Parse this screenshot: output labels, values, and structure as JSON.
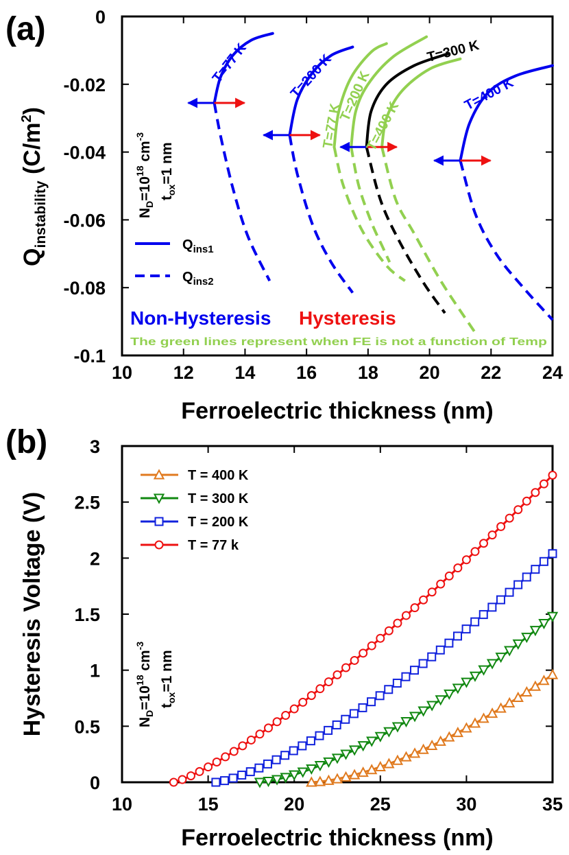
{
  "chart_data": [
    {
      "panel": "(a)",
      "type": "line",
      "xlabel": "Ferroelectric thickness (nm)",
      "ylabel": {
        "main": "Q",
        "sub": "instability",
        "unit": " (C/m",
        "unit_sup": "2",
        "unit_end": ")"
      },
      "xlim": [
        10,
        24
      ],
      "ylim": [
        -0.1,
        0
      ],
      "xticks": [
        10,
        12,
        14,
        16,
        18,
        20,
        22,
        24
      ],
      "yticks": [
        0,
        -0.02,
        -0.04,
        -0.06,
        -0.08,
        -0.1
      ],
      "ytick_labels": [
        "0",
        "-0.02",
        "-0.04",
        "-0.06",
        "-0.08",
        "-0.1"
      ],
      "series": [
        {
          "name": "T=77 K",
          "color": "#0000ee",
          "solid": [
            [
              13.0,
              -0.0255
            ],
            [
              13.2,
              -0.018
            ],
            [
              13.6,
              -0.0115
            ],
            [
              14.2,
              -0.007
            ],
            [
              14.9,
              -0.005
            ]
          ],
          "dashed": [
            [
              13.0,
              -0.0255
            ],
            [
              13.2,
              -0.035
            ],
            [
              13.6,
              -0.0505
            ],
            [
              14.1,
              -0.065
            ],
            [
              14.8,
              -0.078
            ]
          ]
        },
        {
          "name": "T=200 K",
          "color": "#0000ee",
          "solid": [
            [
              15.45,
              -0.035
            ],
            [
              15.7,
              -0.0245
            ],
            [
              16.2,
              -0.0165
            ],
            [
              16.8,
              -0.0115
            ],
            [
              17.5,
              -0.009
            ]
          ],
          "dashed": [
            [
              15.45,
              -0.035
            ],
            [
              15.7,
              -0.0465
            ],
            [
              16.2,
              -0.0615
            ],
            [
              16.8,
              -0.0725
            ],
            [
              17.5,
              -0.0815
            ]
          ]
        },
        {
          "name": "T=77 K",
          "color": "#92d050",
          "fe_temp_independent": true,
          "solid": [
            [
              16.9,
              -0.0385
            ],
            [
              17.05,
              -0.028
            ],
            [
              17.45,
              -0.018
            ],
            [
              18.1,
              -0.0105
            ],
            [
              18.6,
              -0.008
            ]
          ],
          "dashed": [
            [
              16.9,
              -0.0385
            ],
            [
              17.2,
              -0.05
            ],
            [
              17.8,
              -0.063
            ],
            [
              18.6,
              -0.0735
            ],
            [
              19.2,
              -0.078
            ]
          ]
        },
        {
          "name": "T=200 K",
          "color": "#92d050",
          "fe_temp_independent": true,
          "solid": [
            [
              17.45,
              -0.0385
            ],
            [
              17.6,
              -0.028
            ],
            [
              18.0,
              -0.02
            ],
            [
              18.8,
              -0.012
            ],
            [
              19.9,
              -0.006
            ]
          ],
          "dashed": [
            [
              17.45,
              -0.0385
            ],
            [
              17.7,
              -0.05
            ],
            [
              18.1,
              -0.0605
            ],
            [
              18.5,
              -0.0685
            ],
            [
              18.7,
              -0.0725
            ]
          ]
        },
        {
          "name": "T=300 K",
          "color": "#000000",
          "solid": [
            [
              17.95,
              -0.0385
            ],
            [
              18.1,
              -0.028
            ],
            [
              18.6,
              -0.02
            ],
            [
              19.5,
              -0.0145
            ],
            [
              20.6,
              -0.011
            ]
          ],
          "dashed": [
            [
              17.95,
              -0.0385
            ],
            [
              18.4,
              -0.054
            ],
            [
              19.0,
              -0.066
            ],
            [
              19.8,
              -0.0785
            ],
            [
              20.5,
              -0.0875
            ]
          ]
        },
        {
          "name": "T=400 K",
          "color": "#92d050",
          "fe_temp_independent": true,
          "solid": [
            [
              18.45,
              -0.0385
            ],
            [
              18.6,
              -0.03
            ],
            [
              19.1,
              -0.022
            ],
            [
              20.0,
              -0.0155
            ],
            [
              21.0,
              -0.0125
            ]
          ],
          "dashed": [
            [
              18.45,
              -0.0385
            ],
            [
              18.9,
              -0.054
            ],
            [
              19.5,
              -0.064
            ],
            [
              20.4,
              -0.0785
            ],
            [
              21.5,
              -0.0935
            ]
          ]
        },
        {
          "name": "T=400 K",
          "color": "#0000ee",
          "solid": [
            [
              21.0,
              -0.0425
            ],
            [
              21.3,
              -0.0315
            ],
            [
              21.9,
              -0.0225
            ],
            [
              22.8,
              -0.0175
            ],
            [
              24.0,
              -0.0145
            ]
          ],
          "dashed": [
            [
              21.0,
              -0.0425
            ],
            [
              21.5,
              -0.0585
            ],
            [
              22.2,
              -0.0705
            ],
            [
              23.1,
              -0.0805
            ],
            [
              24.0,
              -0.0895
            ]
          ]
        }
      ],
      "curve_labels": [
        {
          "text": "T=77 K",
          "color": "#0000ee",
          "x": 13.6,
          "y": -0.0145,
          "angle": -52
        },
        {
          "text": "T=200 K",
          "color": "#0000ee",
          "x": 16.25,
          "y": -0.0185,
          "angle": -48
        },
        {
          "text": "T=77 K",
          "color": "#92d050",
          "x": 16.95,
          "y": -0.0325,
          "angle": -80
        },
        {
          "text": "T=200 K",
          "color": "#92d050",
          "x": 17.7,
          "y": -0.024,
          "angle": -66
        },
        {
          "text": "T=300 K",
          "color": "#000000",
          "x": 20.8,
          "y": -0.0115,
          "angle": -14
        },
        {
          "text": "T=400 K",
          "color": "#92d050",
          "x": 18.6,
          "y": -0.033,
          "angle": -62
        },
        {
          "text": "T=400 K",
          "color": "#0000ee",
          "x": 22.0,
          "y": -0.024,
          "angle": -28
        }
      ],
      "arrows": [
        {
          "x": 13.0,
          "y": -0.0255
        },
        {
          "x": 15.45,
          "y": -0.035
        },
        {
          "x": 17.95,
          "y": -0.0385
        },
        {
          "x": 21.0,
          "y": -0.0425
        }
      ],
      "annotation": {
        "n": "N",
        "n_sub": "D",
        "n_mid": "=10",
        "n_sup": "18",
        "n_unit": " cm",
        "n_unit_sup": "-3",
        "t": "t",
        "t_sub": "ox",
        "t_val": "=1 nm"
      },
      "legend": [
        {
          "label": "Q",
          "label_sub": "ins1",
          "style": "solid"
        },
        {
          "label": "Q",
          "label_sub": "ins2",
          "style": "dashed"
        }
      ],
      "notes": {
        "non_hysteresis": "Non-Hysteresis",
        "hysteresis": "Hysteresis",
        "green_note": "The green lines represent when FE is not a function of Temp"
      },
      "colors": {
        "blue": "#0000ee",
        "red": "#ee1111",
        "green": "#92d050",
        "black": "#000000"
      }
    },
    {
      "panel": "(b)",
      "type": "line",
      "xlabel": "Ferroelectric thickness (nm)",
      "ylabel": "Hysteresis Voltage (V)",
      "xlim": [
        10,
        35
      ],
      "ylim": [
        0,
        3
      ],
      "xticks": [
        10,
        15,
        20,
        25,
        30,
        35
      ],
      "yticks": [
        0,
        0.5,
        1,
        1.5,
        2,
        2.5,
        3
      ],
      "ytick_labels": [
        "0",
        "0.5",
        "1",
        "1.5",
        "2",
        "2.5",
        "3"
      ],
      "series": [
        {
          "name": "T = 400 K",
          "color": "#e07a1f",
          "marker": "triangle-up",
          "x_start": 21.0,
          "x_end": 35.0,
          "y_end": 0.96,
          "exp": 1.55,
          "n_points": 29
        },
        {
          "name": "T = 300 K",
          "color": "#118811",
          "marker": "triangle-down",
          "x_start": 18.0,
          "x_end": 35.0,
          "y_end": 1.48,
          "exp": 1.45,
          "n_points": 35
        },
        {
          "name": "T = 200 K",
          "color": "#1122dd",
          "marker": "square",
          "x_start": 15.45,
          "x_end": 35.0,
          "y_end": 2.04,
          "exp": 1.35,
          "n_points": 40
        },
        {
          "name": "T = 77 k",
          "color": "#ee1111",
          "marker": "circle",
          "x_start": 13.0,
          "x_end": 35.0,
          "y_end": 2.74,
          "exp": 1.25,
          "n_points": 45
        }
      ],
      "annotation": {
        "n": "N",
        "n_sub": "D",
        "n_mid": "=10",
        "n_sup": "18",
        "n_unit": " cm",
        "n_unit_sup": "-3",
        "t": "t",
        "t_sub": "ox",
        "t_val": "=1 nm"
      }
    }
  ]
}
